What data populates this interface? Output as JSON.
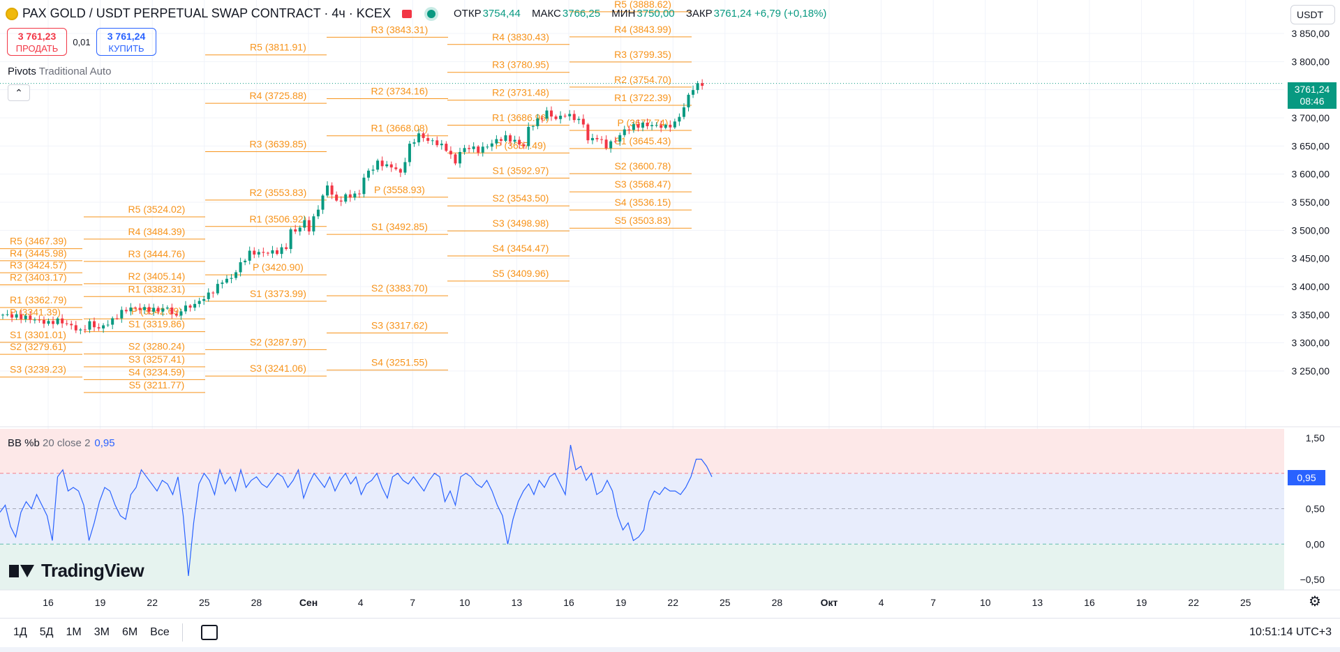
{
  "header": {
    "title": "PAX GOLD / USDT PERPETUAL SWAP CONTRACT · 4ч · KCEX",
    "symbol_icon": "pax-gold-coin-icon",
    "ohlc": [
      {
        "key": "ОТКР",
        "value": "3754,44"
      },
      {
        "key": "МАКС",
        "value": "3766,25"
      },
      {
        "key": "МИН",
        "value": "3750,00"
      },
      {
        "key": "ЗАКР",
        "value": "3761,24 +6,79 (+0,18%)"
      }
    ],
    "up_color": "#089981",
    "down_color": "#f23645"
  },
  "trade": {
    "sell_price": "3 761,23",
    "sell_label": "ПРОДАТЬ",
    "spread": "0,01",
    "buy_price": "3 761,24",
    "buy_label": "КУПИТЬ"
  },
  "indicators": {
    "pivots_name": "Pivots",
    "pivots_params": "Traditional Auto",
    "bb_name": "BB %b",
    "bb_params": "20 close 2",
    "bb_value": "0,95"
  },
  "currency": "USDT",
  "last_price_tag": {
    "price": "3761,24",
    "countdown": "08:46"
  },
  "bb_tag": "0,95",
  "logo_text": "TradingView",
  "ranges": [
    "1Д",
    "5Д",
    "1М",
    "3М",
    "6М",
    "Все"
  ],
  "clock": "10:51:14 UTC+3",
  "chart_data": [
    {
      "type": "candlestick",
      "title": "PAX GOLD / USDT PERPETUAL SWAP CONTRACT · 4ч · KCEX",
      "y_ticks": [
        "3 850,00",
        "3 800,00",
        "3 750,00",
        "3 700,00",
        "3 650,00",
        "3 600,00",
        "3 550,00",
        "3 500,00",
        "3 450,00",
        "3 400,00",
        "3 350,00",
        "3 300,00",
        "3 250,00"
      ],
      "y_tick_values": [
        3850,
        3800,
        3750,
        3700,
        3650,
        3600,
        3550,
        3500,
        3450,
        3400,
        3350,
        3300,
        3250
      ],
      "x_ticks": [
        "16",
        "19",
        "22",
        "25",
        "28",
        "Сен",
        "4",
        "7",
        "10",
        "13",
        "16",
        "19",
        "22",
        "25",
        "28",
        "Окт",
        "4",
        "7",
        "10",
        "13",
        "16",
        "19",
        "22",
        "25"
      ],
      "price_path": [
        [
          0,
          3350
        ],
        [
          5,
          3345
        ],
        [
          10,
          3335
        ],
        [
          12,
          3340
        ],
        [
          15,
          3330
        ],
        [
          17,
          3320
        ],
        [
          19,
          3335
        ],
        [
          21,
          3325
        ],
        [
          24,
          3340
        ],
        [
          26,
          3355
        ],
        [
          28,
          3362
        ],
        [
          31,
          3360
        ],
        [
          34,
          3358
        ],
        [
          36,
          3362
        ],
        [
          38,
          3345
        ],
        [
          39,
          3360
        ],
        [
          42,
          3368
        ],
        [
          44,
          3380
        ],
        [
          46,
          3392
        ],
        [
          48,
          3410
        ],
        [
          50,
          3415
        ],
        [
          52,
          3440
        ],
        [
          54,
          3460
        ],
        [
          57,
          3460
        ],
        [
          60,
          3462
        ],
        [
          62,
          3470
        ],
        [
          63,
          3500
        ],
        [
          64,
          3498
        ],
        [
          66,
          3515
        ],
        [
          67,
          3502
        ],
        [
          69,
          3540
        ],
        [
          70,
          3560
        ],
        [
          71,
          3580
        ],
        [
          73,
          3550
        ],
        [
          75,
          3560
        ],
        [
          78,
          3565
        ],
        [
          79,
          3595
        ],
        [
          82,
          3620
        ],
        [
          84,
          3615
        ],
        [
          86,
          3610
        ],
        [
          87,
          3600
        ],
        [
          89,
          3650
        ],
        [
          91,
          3670
        ],
        [
          93,
          3660
        ],
        [
          95,
          3655
        ],
        [
          97,
          3645
        ],
        [
          99,
          3620
        ],
        [
          100,
          3640
        ],
        [
          102,
          3648
        ],
        [
          104,
          3642
        ],
        [
          106,
          3650
        ],
        [
          108,
          3660
        ],
        [
          110,
          3665
        ],
        [
          112,
          3658
        ],
        [
          114,
          3650
        ],
        [
          115,
          3682
        ],
        [
          117,
          3695
        ],
        [
          119,
          3710
        ],
        [
          121,
          3698
        ],
        [
          123,
          3706
        ],
        [
          125,
          3700
        ],
        [
          127,
          3690
        ],
        [
          128,
          3660
        ],
        [
          130,
          3665
        ],
        [
          132,
          3650
        ],
        [
          134,
          3660
        ],
        [
          136,
          3678
        ],
        [
          138,
          3685
        ],
        [
          140,
          3688
        ],
        [
          143,
          3686
        ],
        [
          145,
          3684
        ],
        [
          147,
          3690
        ],
        [
          149,
          3718
        ],
        [
          150,
          3740
        ],
        [
          151,
          3752
        ],
        [
          152,
          3758
        ],
        [
          153,
          3761
        ]
      ],
      "last_price": 3761.24,
      "pivots": [
        {
          "labels": [
            "R5 (3467.39)",
            "R4 (3445.98)",
            "R3 (3424.57)",
            "R2 (3403.17)",
            "R1 (3362.79)",
            "P (3341.39)",
            "S1 (3301.01)",
            "S2 (3279.61)",
            "S3 (3239.23)"
          ],
          "values": [
            3467.39,
            3445.98,
            3424.57,
            3403.17,
            3362.79,
            3341.39,
            3301.01,
            3279.61,
            3239.23
          ]
        },
        {
          "labels": [
            "R5 (3524.02)",
            "R4 (3484.39)",
            "R3 (3444.76)",
            "R2 (3405.14)",
            "R1 (3382.31)",
            "P (3342.69)",
            "S1 (3319.86)",
            "S2 (3280.24)",
            "S3 (3257.41)",
            "S4 (3234.59)",
            "S5 (3211.77)"
          ],
          "values": [
            3524.02,
            3484.39,
            3444.76,
            3405.14,
            3382.31,
            3342.69,
            3319.86,
            3280.24,
            3257.41,
            3234.59,
            3211.77
          ]
        },
        {
          "labels": [
            "R5 (3811.91)",
            "R4 (3725.88)",
            "R3 (3639.85)",
            "R2 (3553.83)",
            "R1 (3506.92)",
            "P (3420.90)",
            "S1 (3373.99)",
            "S2 (3287.97)",
            "S3 (3241.06)"
          ],
          "values": [
            3811.91,
            3725.88,
            3639.85,
            3553.83,
            3506.92,
            3420.9,
            3373.99,
            3287.97,
            3241.06
          ]
        },
        {
          "labels": [
            "R3 (3843.31)",
            "R2 (3734.16)",
            "R1 (3668.08)",
            "P (3558.93)",
            "S1 (3492.85)",
            "S2 (3383.70)",
            "S3 (3317.62)",
            "S4 (3251.55)"
          ],
          "values": [
            3843.31,
            3734.16,
            3668.08,
            3558.93,
            3492.85,
            3383.7,
            3317.62,
            3251.55
          ]
        },
        {
          "labels": [
            "R4 (3830.43)",
            "R3 (3780.95)",
            "R2 (3731.48)",
            "R1 (3686.96)",
            "P (3637.49)",
            "S1 (3592.97)",
            "S2 (3543.50)",
            "S3 (3498.98)",
            "S4 (3454.47)",
            "S5 (3409.96)"
          ],
          "values": [
            3830.43,
            3780.95,
            3731.48,
            3686.96,
            3637.49,
            3592.97,
            3543.5,
            3498.98,
            3454.47,
            3409.96
          ]
        },
        {
          "labels": [
            "R5 (3888.62)",
            "R4 (3843.99)",
            "R3 (3799.35)",
            "R2 (3754.70)",
            "R1 (3722.39)",
            "P (3677.74)",
            "S1 (3645.43)",
            "S2 (3600.78)",
            "S3 (3568.47)",
            "S4 (3536.15)",
            "S5 (3503.83)"
          ],
          "values": [
            3888.62,
            3843.99,
            3799.35,
            3754.7,
            3722.39,
            3677.74,
            3645.43,
            3600.78,
            3568.47,
            3536.15,
            3503.83
          ]
        }
      ]
    },
    {
      "type": "line",
      "title": "BB %b 20 close 2",
      "y_ticks": [
        "1,50",
        "1,00",
        "0,50",
        "0,00",
        "−0,50"
      ],
      "y_tick_values": [
        1.5,
        1.0,
        0.5,
        0.0,
        -0.5
      ],
      "bands": {
        "upper": 1.0,
        "middle": 0.5,
        "lower": 0.0
      },
      "band_colors": {
        "top": "#fde8e8",
        "mid": "#e8edfc",
        "bottom": "#e6f3ef"
      },
      "series_color": "#2962ff",
      "values": [
        0.45,
        0.55,
        0.25,
        0.1,
        0.45,
        0.6,
        0.5,
        0.7,
        0.55,
        0.4,
        0.05,
        0.95,
        1.05,
        0.75,
        0.8,
        0.75,
        0.55,
        0.05,
        0.3,
        0.6,
        0.8,
        0.75,
        0.55,
        0.4,
        0.35,
        0.7,
        0.8,
        1.05,
        0.95,
        0.85,
        0.75,
        0.9,
        0.85,
        0.7,
        0.95,
        0.4,
        -0.45,
        0.3,
        0.85,
        1.0,
        0.9,
        0.7,
        1.05,
        0.85,
        0.95,
        0.75,
        1.05,
        0.8,
        0.9,
        0.95,
        0.85,
        0.8,
        0.9,
        1.0,
        0.95,
        0.8,
        0.9,
        1.05,
        0.65,
        0.85,
        1.0,
        0.9,
        0.8,
        0.95,
        0.75,
        0.9,
        1.0,
        0.85,
        0.95,
        0.7,
        0.85,
        0.9,
        1.0,
        0.8,
        0.65,
        0.95,
        1.0,
        0.9,
        0.85,
        0.95,
        0.85,
        0.75,
        0.9,
        1.0,
        0.95,
        0.6,
        0.75,
        0.55,
        0.95,
        1.0,
        0.95,
        0.85,
        0.8,
        0.9,
        0.75,
        0.55,
        0.4,
        0.0,
        0.35,
        0.6,
        0.75,
        0.85,
        0.7,
        0.9,
        0.8,
        0.95,
        1.0,
        0.85,
        0.7,
        1.4,
        1.05,
        1.1,
        0.9,
        1.0,
        0.7,
        0.75,
        0.9,
        0.75,
        0.4,
        0.2,
        0.3,
        0.05,
        0.1,
        0.2,
        0.6,
        0.75,
        0.7,
        0.8,
        0.75,
        0.75,
        0.7,
        0.8,
        0.95,
        1.2,
        1.2,
        1.1,
        0.95
      ]
    }
  ]
}
